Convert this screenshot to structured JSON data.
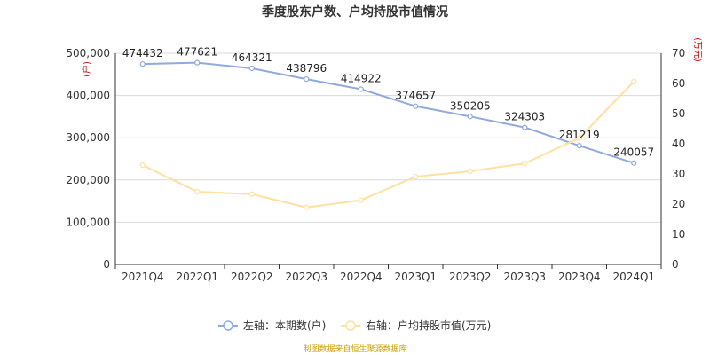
{
  "chart_data": {
    "type": "line",
    "title": "季度股东户数、户均持股市值情况",
    "categories": [
      "2021Q4",
      "2022Q1",
      "2022Q2",
      "2022Q3",
      "2022Q4",
      "2023Q1",
      "2023Q2",
      "2023Q3",
      "2023Q4",
      "2024Q1"
    ],
    "left_axis": {
      "unit": "(户)",
      "ylim": [
        0,
        500000
      ],
      "ticks": [
        "0",
        "100,000",
        "200,000",
        "300,000",
        "400,000",
        "500,000"
      ]
    },
    "right_axis": {
      "unit": "(万元)",
      "ylim": [
        0,
        70
      ],
      "ticks": [
        "0",
        "10",
        "20",
        "30",
        "40",
        "50",
        "60",
        "70"
      ]
    },
    "series": [
      {
        "name": "左轴：本期数(户)",
        "axis": "left",
        "color": "#8faadc",
        "values": [
          474432,
          477621,
          464321,
          438796,
          414922,
          374657,
          350205,
          324303,
          281219,
          240057
        ],
        "labels": [
          "474432",
          "477621",
          "464321",
          "438796",
          "414922",
          "374657",
          "350205",
          "324303",
          "281219",
          "240057"
        ]
      },
      {
        "name": "右轴：户均持股市值(万元)",
        "axis": "right",
        "color": "#ffe0a0",
        "values": [
          32.9,
          24.1,
          23.3,
          18.9,
          21.3,
          29.1,
          30.9,
          33.5,
          41.9,
          60.6
        ]
      }
    ],
    "legend_position": "bottom",
    "grid": true
  },
  "footer": {
    "source": "制图数据来自恒生聚源数据库"
  }
}
